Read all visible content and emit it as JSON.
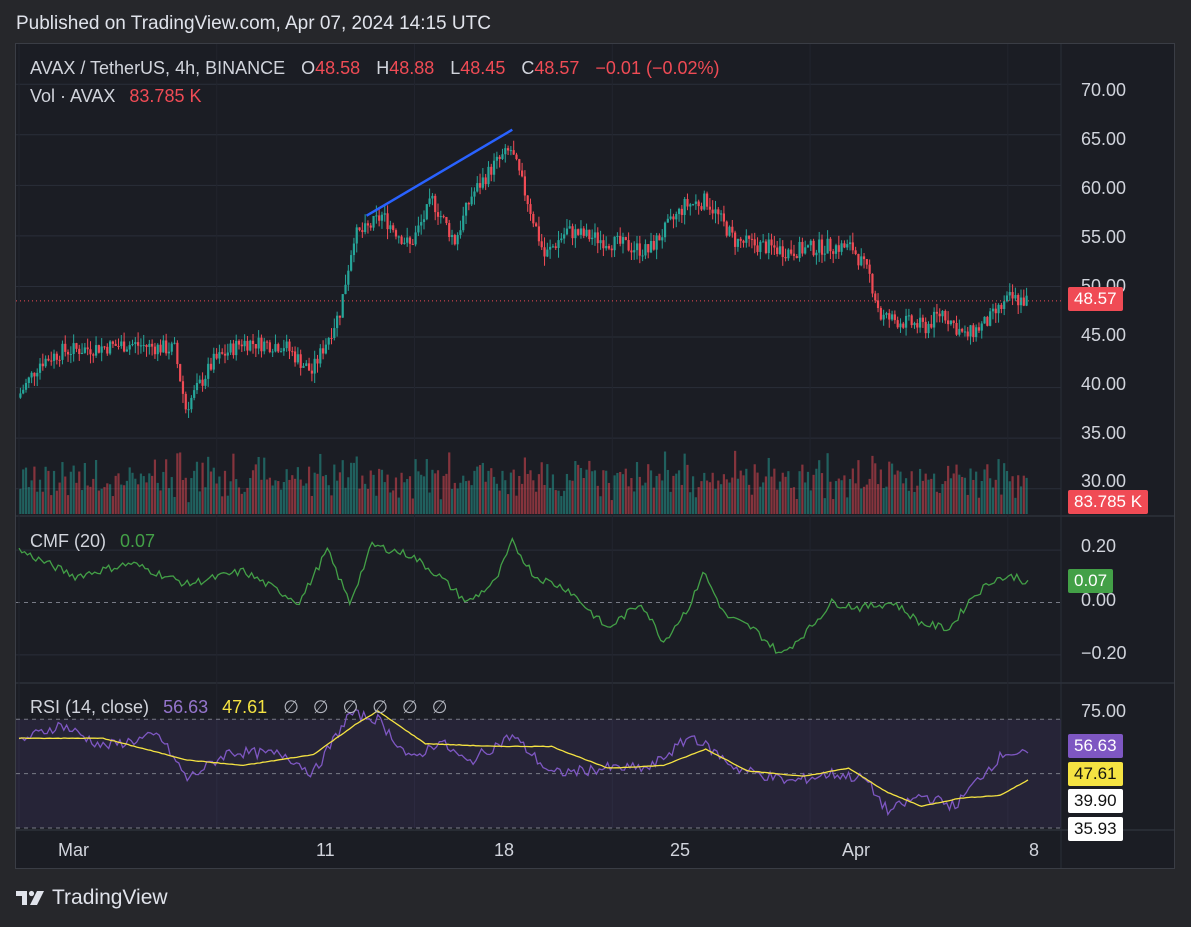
{
  "header": {
    "published": "Published on TradingView.com, Apr 07, 2024 14:15 UTC"
  },
  "main_legend": {
    "symbol": "AVAX / TetherUS, 4h, BINANCE",
    "o_label": "O",
    "o_value": "48.58",
    "h_label": "H",
    "h_value": "48.88",
    "l_label": "L",
    "l_value": "48.45",
    "c_label": "C",
    "c_value": "48.57",
    "change": "−0.01 (−0.02%)",
    "vol_label": "Vol · AVAX",
    "vol_value": "83.785 K"
  },
  "cmf_legend": {
    "name": "CMF (20)",
    "value": "0.07"
  },
  "rsi_legend": {
    "name": "RSI (14, close)",
    "value": "56.63",
    "ma_value": "47.61",
    "empty_symbols": [
      "∅",
      "∅",
      "∅",
      "∅",
      "∅",
      "∅"
    ]
  },
  "price_axis": {
    "ticks": [
      "70.00",
      "65.00",
      "60.00",
      "55.00",
      "50.00",
      "45.00",
      "40.00",
      "35.00",
      "30.00"
    ],
    "last_price": "48.57",
    "last_volume": "83.785 K"
  },
  "cmf_axis": {
    "ticks": [
      "0.20",
      "0.00",
      "−0.20"
    ],
    "last": "0.07"
  },
  "rsi_axis": {
    "ticks": [
      "75.00"
    ],
    "last_rsi": "56.63",
    "last_ma": "47.61",
    "lower_band": "39.90",
    "cut_label": "35.93"
  },
  "time_axis": {
    "labels": [
      "Mar",
      "11",
      "18",
      "25",
      "Apr",
      "8"
    ]
  },
  "footer": {
    "brand": "TradingView"
  },
  "colors": {
    "up": "#26a69a",
    "down": "#f04b55",
    "cmf_line": "#43a047",
    "rsi_line": "#7e57c2",
    "rsi_ma": "#f5e342",
    "trendline": "#2962ff",
    "background": "#1b1d24"
  },
  "chart_data": {
    "type": "candlestick",
    "title": "AVAX / TetherUS, 4h, BINANCE",
    "x_labels": [
      "Mar",
      "11",
      "18",
      "25",
      "Apr",
      "8"
    ],
    "price_range": [
      27.5,
      72
    ],
    "close_path_anchors": [
      {
        "t": 0,
        "v": 39.0
      },
      {
        "t": 8,
        "v": 42.5
      },
      {
        "t": 16,
        "v": 43.6
      },
      {
        "t": 40,
        "v": 44.3
      },
      {
        "t": 56,
        "v": 43.8
      },
      {
        "t": 60,
        "v": 38.0
      },
      {
        "t": 70,
        "v": 42.6
      },
      {
        "t": 80,
        "v": 44.5
      },
      {
        "t": 95,
        "v": 44.2
      },
      {
        "t": 105,
        "v": 41.5
      },
      {
        "t": 115,
        "v": 47.5
      },
      {
        "t": 120,
        "v": 55.0
      },
      {
        "t": 124,
        "v": 55.5
      },
      {
        "t": 130,
        "v": 57.0
      },
      {
        "t": 140,
        "v": 54.0
      },
      {
        "t": 148,
        "v": 58.5
      },
      {
        "t": 156,
        "v": 54.5
      },
      {
        "t": 162,
        "v": 59.0
      },
      {
        "t": 170,
        "v": 62.0
      },
      {
        "t": 176,
        "v": 63.5
      },
      {
        "t": 182,
        "v": 58.5
      },
      {
        "t": 188,
        "v": 53.0
      },
      {
        "t": 196,
        "v": 55.5
      },
      {
        "t": 210,
        "v": 54.5
      },
      {
        "t": 225,
        "v": 53.5
      },
      {
        "t": 238,
        "v": 58.0
      },
      {
        "t": 246,
        "v": 58.5
      },
      {
        "t": 256,
        "v": 54.5
      },
      {
        "t": 275,
        "v": 53.5
      },
      {
        "t": 290,
        "v": 54.0
      },
      {
        "t": 298,
        "v": 53.8
      },
      {
        "t": 304,
        "v": 51.0
      },
      {
        "t": 308,
        "v": 47.0
      },
      {
        "t": 316,
        "v": 46.5
      },
      {
        "t": 324,
        "v": 46.0
      },
      {
        "t": 330,
        "v": 47.5
      },
      {
        "t": 338,
        "v": 45.0
      },
      {
        "t": 346,
        "v": 46.5
      },
      {
        "t": 354,
        "v": 48.8
      },
      {
        "t": 360,
        "v": 48.57
      }
    ],
    "candle_count": 360,
    "volume_range_K": [
      0,
      450
    ],
    "cmf_range": [
      -0.3,
      0.3
    ],
    "cmf_anchors": [
      {
        "t": 0,
        "v": 0.2
      },
      {
        "t": 20,
        "v": 0.1
      },
      {
        "t": 40,
        "v": 0.15
      },
      {
        "t": 60,
        "v": 0.07
      },
      {
        "t": 80,
        "v": 0.12
      },
      {
        "t": 100,
        "v": 0.0
      },
      {
        "t": 110,
        "v": 0.2
      },
      {
        "t": 118,
        "v": 0.0
      },
      {
        "t": 126,
        "v": 0.22
      },
      {
        "t": 140,
        "v": 0.18
      },
      {
        "t": 150,
        "v": 0.1
      },
      {
        "t": 160,
        "v": 0.0
      },
      {
        "t": 170,
        "v": 0.08
      },
      {
        "t": 176,
        "v": 0.23
      },
      {
        "t": 184,
        "v": 0.1
      },
      {
        "t": 196,
        "v": 0.05
      },
      {
        "t": 210,
        "v": -0.1
      },
      {
        "t": 222,
        "v": 0.0
      },
      {
        "t": 230,
        "v": -0.15
      },
      {
        "t": 240,
        "v": 0.0
      },
      {
        "t": 244,
        "v": 0.12
      },
      {
        "t": 252,
        "v": -0.05
      },
      {
        "t": 262,
        "v": -0.1
      },
      {
        "t": 272,
        "v": -0.2
      },
      {
        "t": 282,
        "v": -0.1
      },
      {
        "t": 290,
        "v": 0.0
      },
      {
        "t": 300,
        "v": -0.02
      },
      {
        "t": 312,
        "v": 0.0
      },
      {
        "t": 322,
        "v": -0.08
      },
      {
        "t": 332,
        "v": -0.1
      },
      {
        "t": 340,
        "v": 0.02
      },
      {
        "t": 348,
        "v": 0.09
      },
      {
        "t": 356,
        "v": 0.1
      },
      {
        "t": 360,
        "v": 0.07
      }
    ],
    "rsi_range": [
      30,
      80
    ],
    "rsi_anchors": [
      {
        "t": 0,
        "v": 62
      },
      {
        "t": 15,
        "v": 68
      },
      {
        "t": 30,
        "v": 60
      },
      {
        "t": 50,
        "v": 64
      },
      {
        "t": 60,
        "v": 48
      },
      {
        "t": 75,
        "v": 58
      },
      {
        "t": 95,
        "v": 57
      },
      {
        "t": 105,
        "v": 50
      },
      {
        "t": 118,
        "v": 72
      },
      {
        "t": 128,
        "v": 70
      },
      {
        "t": 140,
        "v": 55
      },
      {
        "t": 150,
        "v": 62
      },
      {
        "t": 160,
        "v": 54
      },
      {
        "t": 176,
        "v": 64
      },
      {
        "t": 190,
        "v": 50
      },
      {
        "t": 210,
        "v": 52
      },
      {
        "t": 225,
        "v": 52
      },
      {
        "t": 240,
        "v": 64
      },
      {
        "t": 256,
        "v": 52
      },
      {
        "t": 275,
        "v": 47
      },
      {
        "t": 290,
        "v": 50
      },
      {
        "t": 302,
        "v": 48
      },
      {
        "t": 310,
        "v": 36
      },
      {
        "t": 322,
        "v": 42
      },
      {
        "t": 334,
        "v": 38
      },
      {
        "t": 344,
        "v": 50
      },
      {
        "t": 352,
        "v": 58
      },
      {
        "t": 360,
        "v": 56.63
      }
    ],
    "rsi_ma_anchors": [
      {
        "t": 0,
        "v": 63
      },
      {
        "t": 30,
        "v": 63
      },
      {
        "t": 60,
        "v": 55
      },
      {
        "t": 80,
        "v": 53
      },
      {
        "t": 105,
        "v": 57
      },
      {
        "t": 120,
        "v": 68
      },
      {
        "t": 128,
        "v": 73
      },
      {
        "t": 145,
        "v": 61
      },
      {
        "t": 170,
        "v": 60
      },
      {
        "t": 190,
        "v": 60
      },
      {
        "t": 210,
        "v": 52
      },
      {
        "t": 230,
        "v": 53
      },
      {
        "t": 245,
        "v": 59
      },
      {
        "t": 260,
        "v": 51
      },
      {
        "t": 280,
        "v": 49
      },
      {
        "t": 296,
        "v": 52
      },
      {
        "t": 310,
        "v": 43
      },
      {
        "t": 322,
        "v": 38
      },
      {
        "t": 336,
        "v": 41
      },
      {
        "t": 350,
        "v": 42
      },
      {
        "t": 360,
        "v": 47.61
      }
    ],
    "trendline": [
      {
        "t": 124,
        "v": 57.0
      },
      {
        "t": 176,
        "v": 65.5
      }
    ],
    "rsi_bands": [
      70,
      50,
      30
    ]
  }
}
